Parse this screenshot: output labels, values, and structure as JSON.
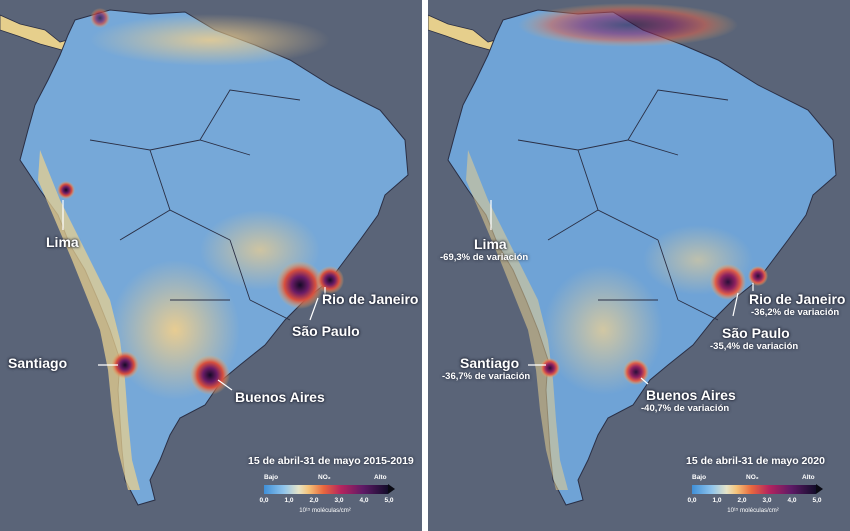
{
  "panels": [
    {
      "date_range": "15 de abril-31 de mayo 2015-2019",
      "cities": {
        "lima": {
          "name": "Lima",
          "change": ""
        },
        "santiago": {
          "name": "Santiago",
          "change": ""
        },
        "rio": {
          "name": "Rio de Janeiro",
          "change": ""
        },
        "sao_paulo": {
          "name": "São Paulo",
          "change": ""
        },
        "buenos_aires": {
          "name": "Buenos Aires",
          "change": ""
        }
      },
      "legend": {
        "low": "Bajo",
        "gas": "NO₂",
        "high": "Alto",
        "ticks": [
          "0,0",
          "1,0",
          "2,0",
          "3,0",
          "4,0",
          "5,0"
        ],
        "units": "10¹⁵ moléculas/cm²"
      }
    },
    {
      "date_range": "15 de abril-31 de mayo 2020",
      "cities": {
        "lima": {
          "name": "Lima",
          "change": "-69,3% de variación"
        },
        "santiago": {
          "name": "Santiago",
          "change": "-36,7% de variación"
        },
        "rio": {
          "name": "Rio de Janeiro",
          "change": "-36,2% de variación"
        },
        "sao_paulo": {
          "name": "São Paulo",
          "change": "-35,4% de variación"
        },
        "buenos_aires": {
          "name": "Buenos Aires",
          "change": "-40,7% de variación"
        }
      },
      "legend": {
        "low": "Bajo",
        "gas": "NO₂",
        "high": "Alto",
        "ticks": [
          "0,0",
          "1,0",
          "2,0",
          "3,0",
          "4,0",
          "5,0"
        ],
        "units": "10¹⁵ moléculas/cm²"
      }
    }
  ],
  "colors": {
    "ocean": "#5a6478",
    "land_base": "#6fa3d6",
    "low_no2": "#e9dca6",
    "medium_no2": "#e9743f",
    "high_no2": "#3b1240",
    "border_lines": "#2a2f45"
  }
}
